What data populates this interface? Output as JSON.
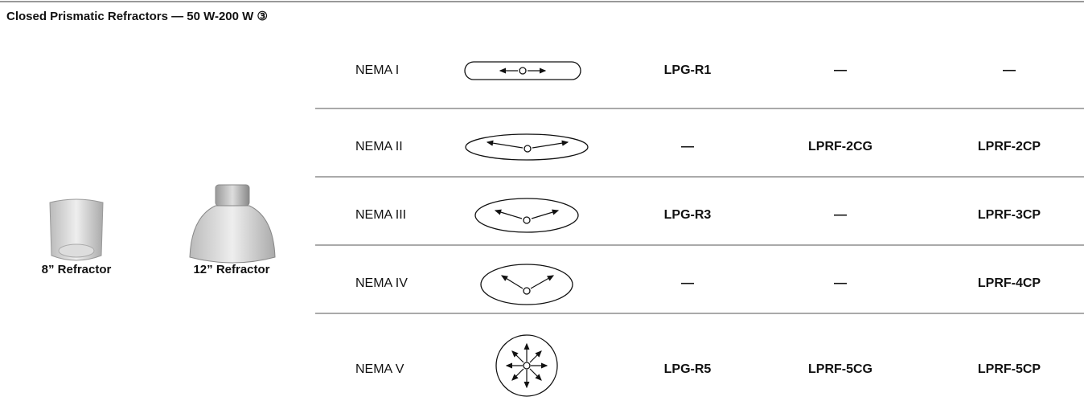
{
  "title": "Closed Prismatic Refractors — 50 W-200 W ③",
  "images": [
    {
      "label": "8” Refractor"
    },
    {
      "label": "12” Refractor"
    }
  ],
  "table": {
    "rows": [
      [
        "NEMA I",
        "LPG-R1",
        "—",
        "—"
      ],
      [
        "NEMA II",
        "—",
        "LPRF-2CG",
        "LPRF-2CP"
      ],
      [
        "NEMA III",
        "LPG-R3",
        "—",
        "LPRF-3CP"
      ],
      [
        "NEMA IV",
        "—",
        "—",
        "LPRF-4CP"
      ],
      [
        "NEMA V",
        "LPG-R5",
        "LPRF-5CG",
        "LPRF-5CP"
      ]
    ]
  }
}
